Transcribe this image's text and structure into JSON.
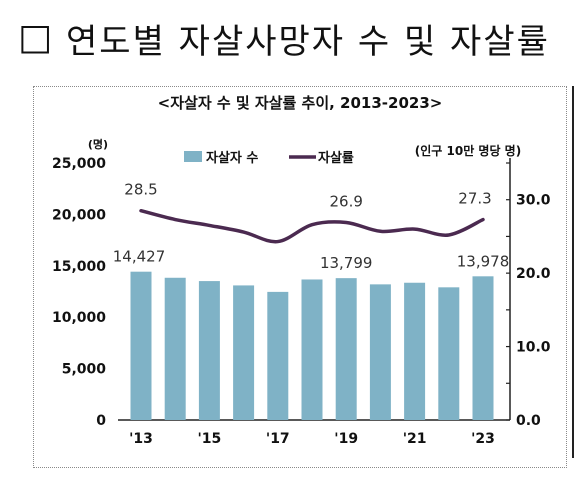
{
  "heading": {
    "box_icon": "□",
    "title": "연도별 자살사망자 수 및 자살률"
  },
  "chart_data": {
    "type": "bar+line",
    "title": "<자살자 수 및 자살률 추이, 2013-2023>",
    "categories": [
      "2013",
      "2014",
      "2015",
      "2016",
      "2017",
      "2018",
      "2019",
      "2020",
      "2021",
      "2022",
      "2023"
    ],
    "x_tick_labels": [
      "'13",
      "'15",
      "'17",
      "'19",
      "'21",
      "'23"
    ],
    "left_axis": {
      "unit": "(명)",
      "ylim": [
        0,
        25000
      ],
      "ticks": [
        "0",
        "5,000",
        "10,000",
        "15,000",
        "20,000",
        "25,000"
      ]
    },
    "right_axis": {
      "unit": "(인구 10만 명당 명)",
      "ylim": [
        0,
        35
      ],
      "ticks": [
        "0.0",
        "10.0",
        "20.0",
        "30.0"
      ]
    },
    "series": [
      {
        "name": "자살자 수",
        "type": "bar",
        "axis": "left",
        "color": "#7fb2c6",
        "values": [
          14427,
          13836,
          13513,
          13092,
          12463,
          13670,
          13799,
          13195,
          13352,
          12906,
          13978
        ]
      },
      {
        "name": "자살률",
        "type": "line",
        "axis": "right",
        "color": "#4b2a50",
        "values": [
          28.5,
          27.3,
          26.5,
          25.6,
          24.3,
          26.6,
          26.9,
          25.7,
          26.0,
          25.2,
          27.3
        ]
      }
    ],
    "bar_labels": [
      {
        "index": 0,
        "text": "14,427"
      },
      {
        "index": 6,
        "text": "13,799"
      },
      {
        "index": 10,
        "text": "13,978"
      }
    ],
    "line_labels": [
      {
        "index": 0,
        "text": "28.5"
      },
      {
        "index": 6,
        "text": "26.9"
      },
      {
        "index": 10,
        "text": "27.3"
      }
    ],
    "legend_position": "top-center",
    "grid": false
  }
}
